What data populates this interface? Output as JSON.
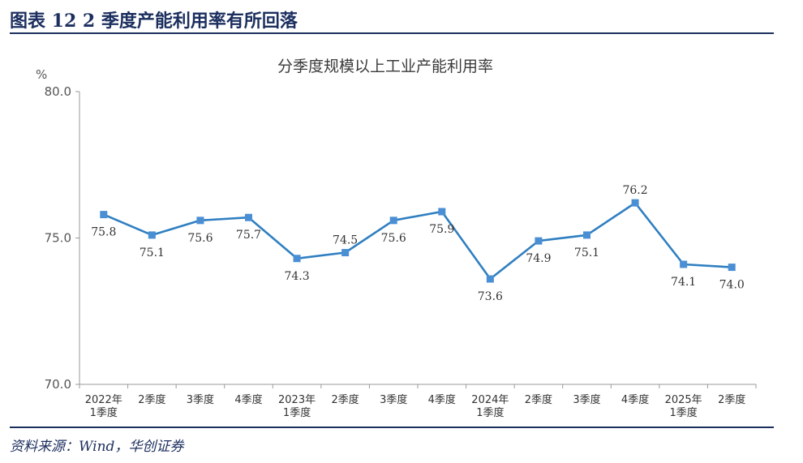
{
  "header": {
    "figure_title": "图表 12    2 季度产能利用率有所回落"
  },
  "footer": {
    "source": "资料来源：Wind，华创证券"
  },
  "chart_data": {
    "type": "line",
    "title": "分季度规模以上工业产能利用率",
    "ylabel": "%",
    "xlabel": "",
    "ylim": [
      70.0,
      80.0
    ],
    "yticks": [
      "80.0",
      "75.0",
      "70.0"
    ],
    "categories": [
      [
        "2022年",
        "1季度"
      ],
      [
        "2季度"
      ],
      [
        "3季度"
      ],
      [
        "4季度"
      ],
      [
        "2023年",
        "1季度"
      ],
      [
        "2季度"
      ],
      [
        "3季度"
      ],
      [
        "4季度"
      ],
      [
        "2024年",
        "1季度"
      ],
      [
        "2季度"
      ],
      [
        "3季度"
      ],
      [
        "4季度"
      ],
      [
        "2025年",
        "1季度"
      ],
      [
        "2季度"
      ]
    ],
    "values": [
      75.8,
      75.1,
      75.6,
      75.7,
      74.3,
      74.5,
      75.6,
      75.9,
      73.6,
      74.9,
      75.1,
      76.2,
      74.1,
      74.0
    ],
    "labels": [
      "75.8",
      "75.1",
      "75.6",
      "75.7",
      "74.3",
      "74.5",
      "75.6",
      "75.9",
      "73.6",
      "74.9",
      "75.1",
      "76.2",
      "74.1",
      "74.0"
    ],
    "label_positions": [
      "below",
      "below",
      "below",
      "below",
      "below",
      "above",
      "below",
      "below",
      "below",
      "below",
      "below",
      "above",
      "below",
      "below"
    ],
    "line_color": "#2f7fc1",
    "marker_color": "#4a8fd4",
    "grid": false,
    "legend": "none"
  }
}
